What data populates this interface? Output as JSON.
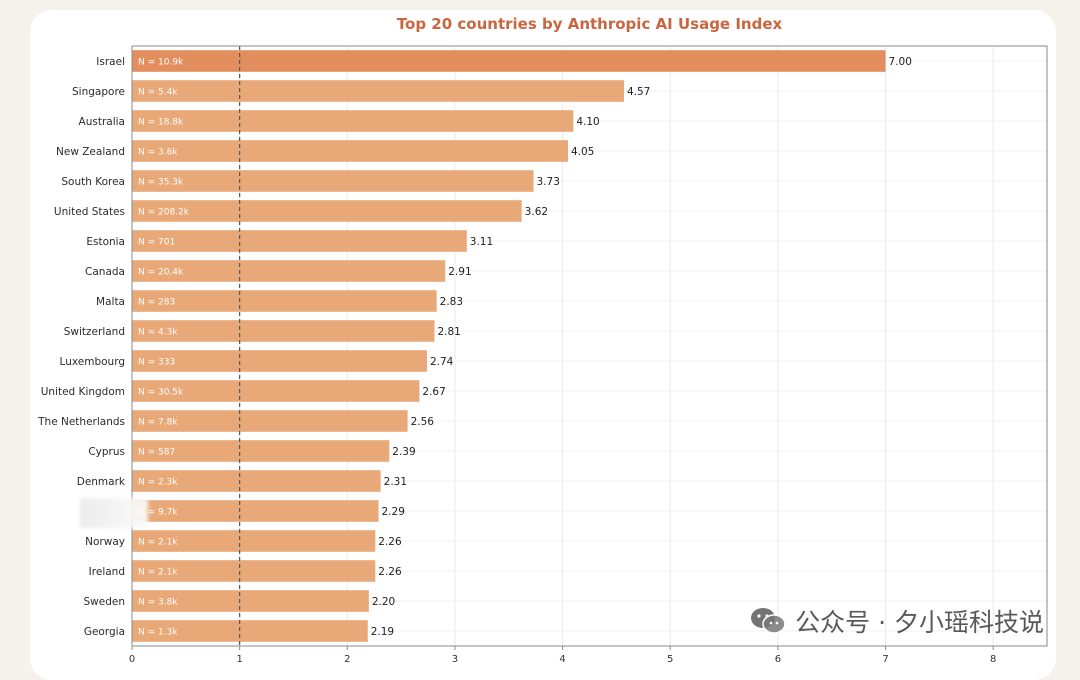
{
  "chart_data": {
    "type": "bar",
    "orientation": "horizontal",
    "title": "Top 20 countries by Anthropic AI Usage Index",
    "categories": [
      "Israel",
      "Singapore",
      "Australia",
      "New Zealand",
      "South Korea",
      "United States",
      "Estonia",
      "Canada",
      "Malta",
      "Switzerland",
      "Luxembourg",
      "United Kingdom",
      "The Netherlands",
      "Cyprus",
      "Denmark",
      "",
      "Norway",
      "Ireland",
      "Sweden",
      "Georgia"
    ],
    "values": [
      7.0,
      4.57,
      4.1,
      4.05,
      3.73,
      3.62,
      3.11,
      2.91,
      2.83,
      2.81,
      2.74,
      2.67,
      2.56,
      2.39,
      2.31,
      2.29,
      2.26,
      2.26,
      2.2,
      2.19
    ],
    "value_labels": [
      "7.00",
      "4.57",
      "4.10",
      "4.05",
      "3.73",
      "3.62",
      "3.11",
      "2.91",
      "2.83",
      "2.81",
      "2.74",
      "2.67",
      "2.56",
      "2.39",
      "2.31",
      "2.29",
      "2.26",
      "2.26",
      "2.20",
      "2.19"
    ],
    "n_labels": [
      "N = 10.9k",
      "N = 5.4k",
      "N = 18.8k",
      "N = 3.6k",
      "N = 35.3k",
      "N = 208.2k",
      "N = 701",
      "N = 20.4k",
      "N = 283",
      "N = 4.3k",
      "N = 333",
      "N = 30.5k",
      "N = 7.8k",
      "N = 587",
      "N = 2.3k",
      "N = 9.7k",
      "N = 2.1k",
      "N = 2.1k",
      "N = 3.8k",
      "N = 1.3k"
    ],
    "xlim": [
      0,
      8.5
    ],
    "xticks": [
      0,
      1,
      2,
      3,
      4,
      5,
      6,
      7,
      8
    ],
    "reference_line": 1,
    "grid": true,
    "colors": {
      "bar": "#e8a877",
      "bar_top": "#e38e5e",
      "title": "#c9653f",
      "ref_line": "#555555"
    }
  },
  "watermark": {
    "text": "公众号 · 夕小瑶科技说",
    "icon": "wechat-icon"
  }
}
